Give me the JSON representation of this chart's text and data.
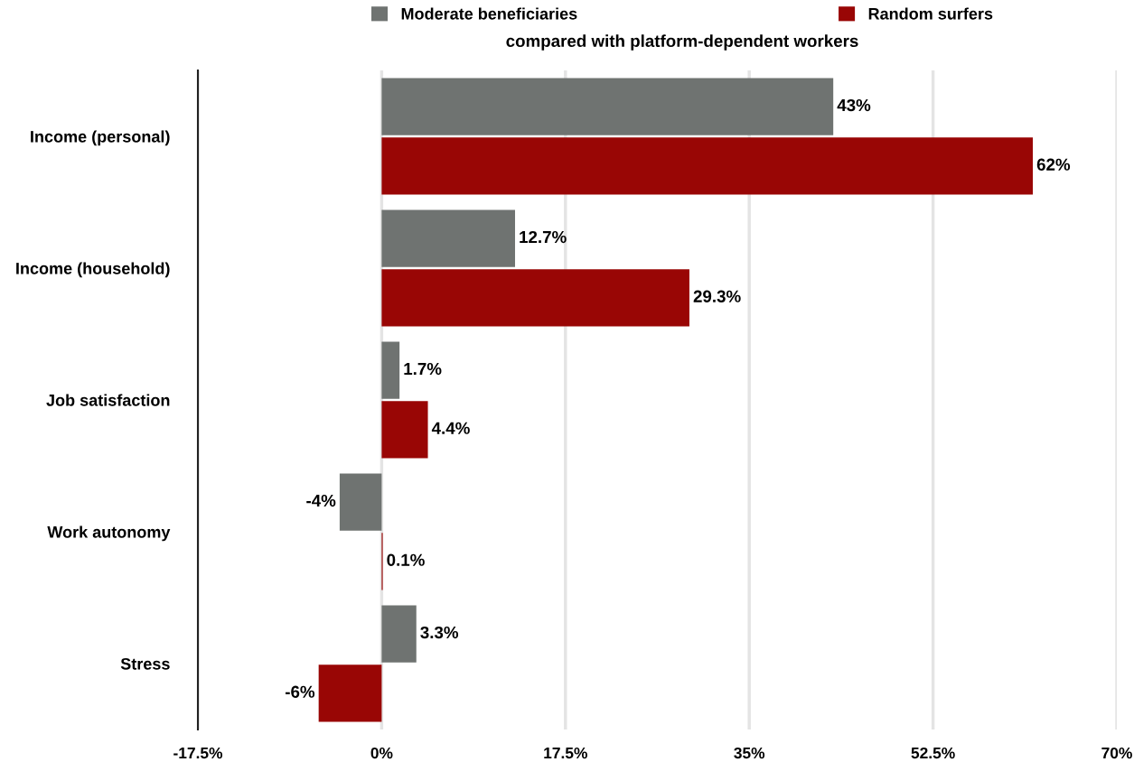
{
  "chart_data": {
    "type": "bar",
    "orientation": "horizontal",
    "title": "compared with platform-dependent workers",
    "categories": [
      "Income (personal)",
      "Income (household)",
      "Job satisfaction",
      "Work autonomy",
      "Stress"
    ],
    "series": [
      {
        "name": "Moderate beneficiaries",
        "color": "#6f7371",
        "values": [
          43,
          12.7,
          1.7,
          -4,
          3.3
        ],
        "value_labels": [
          "43%",
          "12.7%",
          "1.7%",
          "-4%",
          "3.3%"
        ]
      },
      {
        "name": "Random surfers",
        "color": "#990605",
        "values": [
          62,
          29.3,
          4.4,
          0.1,
          -6
        ],
        "value_labels": [
          "62%",
          "29.3%",
          "4.4%",
          "0.1%",
          "-6%"
        ]
      }
    ],
    "xlim": [
      -17.5,
      70
    ],
    "xticks": [
      {
        "value": -17.5,
        "label": "-17.5%"
      },
      {
        "value": 0,
        "label": "0%"
      },
      {
        "value": 17.5,
        "label": "17.5%"
      },
      {
        "value": 35,
        "label": "35%"
      },
      {
        "value": 52.5,
        "label": "52.5%"
      },
      {
        "value": 70,
        "label": "70%"
      }
    ],
    "grid": "x",
    "legend": "top"
  }
}
